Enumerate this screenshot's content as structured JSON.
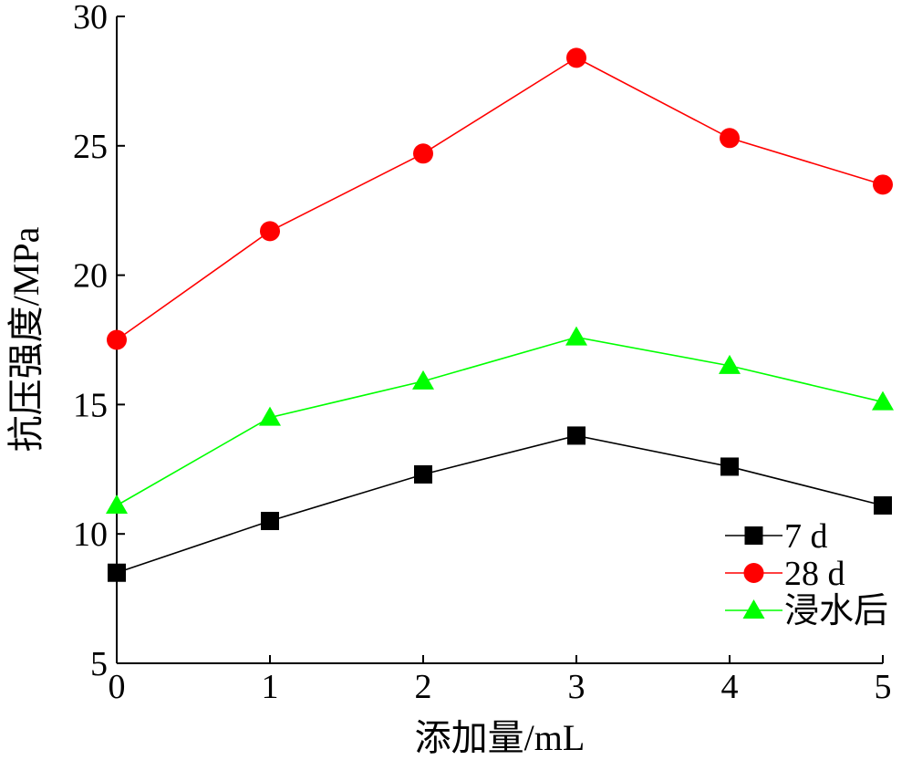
{
  "chart_data": {
    "type": "line",
    "xlabel": "添加量/mL",
    "ylabel": "抗压强度/MPa",
    "x": [
      0,
      1,
      2,
      3,
      4,
      5
    ],
    "xlim": [
      0,
      5
    ],
    "ylim": [
      5,
      30
    ],
    "xticks": [
      "0",
      "1",
      "2",
      "3",
      "4",
      "5"
    ],
    "yticks": [
      "5",
      "10",
      "15",
      "20",
      "25",
      "30"
    ],
    "grid": false,
    "legend_position": "bottom-right",
    "series": [
      {
        "name": "7 d",
        "color": "#000000",
        "marker": "square",
        "values": [
          8.5,
          10.5,
          12.3,
          13.8,
          12.6,
          11.1
        ]
      },
      {
        "name": "28 d",
        "color": "#ff0000",
        "marker": "circle",
        "values": [
          17.5,
          21.7,
          24.7,
          28.4,
          25.3,
          23.5
        ]
      },
      {
        "name": "浸水后",
        "color": "#00ff00",
        "marker": "triangle",
        "values": [
          11.1,
          14.5,
          15.9,
          17.6,
          16.5,
          15.1
        ]
      }
    ]
  }
}
